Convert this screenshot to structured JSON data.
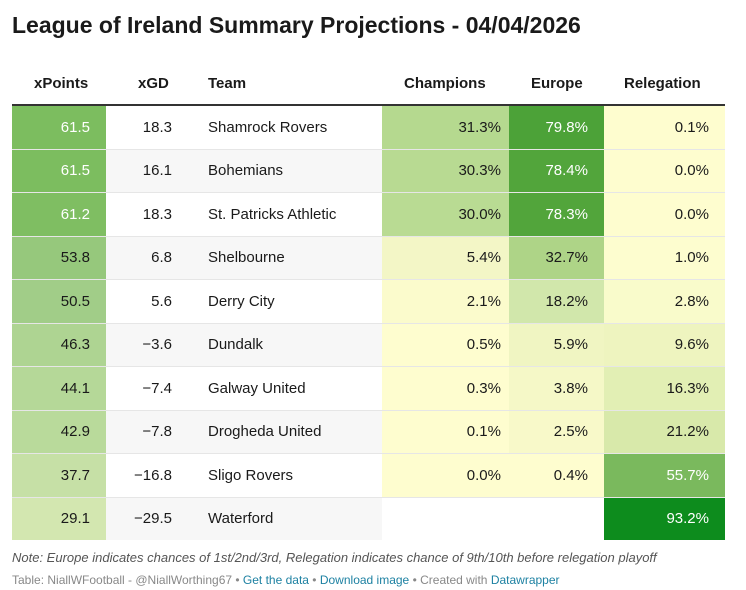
{
  "title": "League of Ireland Summary Projections - 04/04/2026",
  "columns": {
    "xpoints": "xPoints",
    "xgd": "xGD",
    "team": "Team",
    "champions": "Champions",
    "europe": "Europe",
    "relegation": "Relegation"
  },
  "rows": [
    {
      "xpoints": "61.5",
      "xgd": "18.3",
      "team": "Shamrock Rovers",
      "champions": "31.3%",
      "europe": "79.8%",
      "relegation": "0.1%"
    },
    {
      "xpoints": "61.5",
      "xgd": "16.1",
      "team": "Bohemians",
      "champions": "30.3%",
      "europe": "78.4%",
      "relegation": "0.0%"
    },
    {
      "xpoints": "61.2",
      "xgd": "18.3",
      "team": "St. Patricks Athletic",
      "champions": "30.0%",
      "europe": "78.3%",
      "relegation": "0.0%"
    },
    {
      "xpoints": "53.8",
      "xgd": "6.8",
      "team": "Shelbourne",
      "champions": "5.4%",
      "europe": "32.7%",
      "relegation": "1.0%"
    },
    {
      "xpoints": "50.5",
      "xgd": "5.6",
      "team": "Derry City",
      "champions": "2.1%",
      "europe": "18.2%",
      "relegation": "2.8%"
    },
    {
      "xpoints": "46.3",
      "xgd": "−3.6",
      "team": "Dundalk",
      "champions": "0.5%",
      "europe": "5.9%",
      "relegation": "9.6%"
    },
    {
      "xpoints": "44.1",
      "xgd": "−7.4",
      "team": "Galway United",
      "champions": "0.3%",
      "europe": "3.8%",
      "relegation": "16.3%"
    },
    {
      "xpoints": "42.9",
      "xgd": "−7.8",
      "team": "Drogheda United",
      "champions": "0.1%",
      "europe": "2.5%",
      "relegation": "21.2%"
    },
    {
      "xpoints": "37.7",
      "xgd": "−16.8",
      "team": "Sligo Rovers",
      "champions": "0.0%",
      "europe": "0.4%",
      "relegation": "55.7%"
    },
    {
      "xpoints": "29.1",
      "xgd": "−29.5",
      "team": "Waterford",
      "champions": "",
      "europe": "",
      "relegation": "93.2%"
    }
  ],
  "colors": {
    "xpoints": [
      "#7cbd5f",
      "#7cbd5f",
      "#7fbe62",
      "#96c87c",
      "#a1cd88",
      "#aed492",
      "#b5d898",
      "#b9da9b",
      "#c6e0a6",
      "#d3e7b0"
    ],
    "xgd": [
      "#ffffff",
      "#f7f7f7",
      "#ffffff",
      "#f7f7f7",
      "#ffffff",
      "#f7f7f7",
      "#ffffff",
      "#f7f7f7",
      "#ffffff",
      "#f7f7f7"
    ],
    "team": [
      "#ffffff",
      "#f7f7f7",
      "#ffffff",
      "#f7f7f7",
      "#ffffff",
      "#f7f7f7",
      "#ffffff",
      "#f7f7f7",
      "#ffffff",
      "#f7f7f7"
    ],
    "champions": [
      "#b5d98f",
      "#b8da92",
      "#b9db93",
      "#f3f6c6",
      "#fbfbcc",
      "#fefdcf",
      "#fefdcf",
      "#fefdcf",
      "#fefdcf",
      "#ffffff"
    ],
    "europe": [
      "#4ca238",
      "#52a53b",
      "#52a53b",
      "#aed487",
      "#d1e7ab",
      "#f0f5c2",
      "#f5f8c7",
      "#f8f9c9",
      "#fefdcf",
      "#ffffff"
    ],
    "relegation": [
      "#fefdcf",
      "#fefdcf",
      "#fefdcf",
      "#fdfdcf",
      "#f9fbcb",
      "#eef4bf",
      "#e2efb4",
      "#d8e9aa",
      "#7ab95d",
      "#0d8c1d"
    ]
  },
  "footer": {
    "note": "Note: Europe indicates chances of 1st/2nd/3rd, Relegation indicates chance of 9th/10th before relegation playoff",
    "source": "Table: NiallWFootball - @NiallWorthing67 • ",
    "get_data": "Get the data",
    "sep1": " • ",
    "download": "Download image",
    "created": " • Created with ",
    "datawrapper": "Datawrapper"
  }
}
